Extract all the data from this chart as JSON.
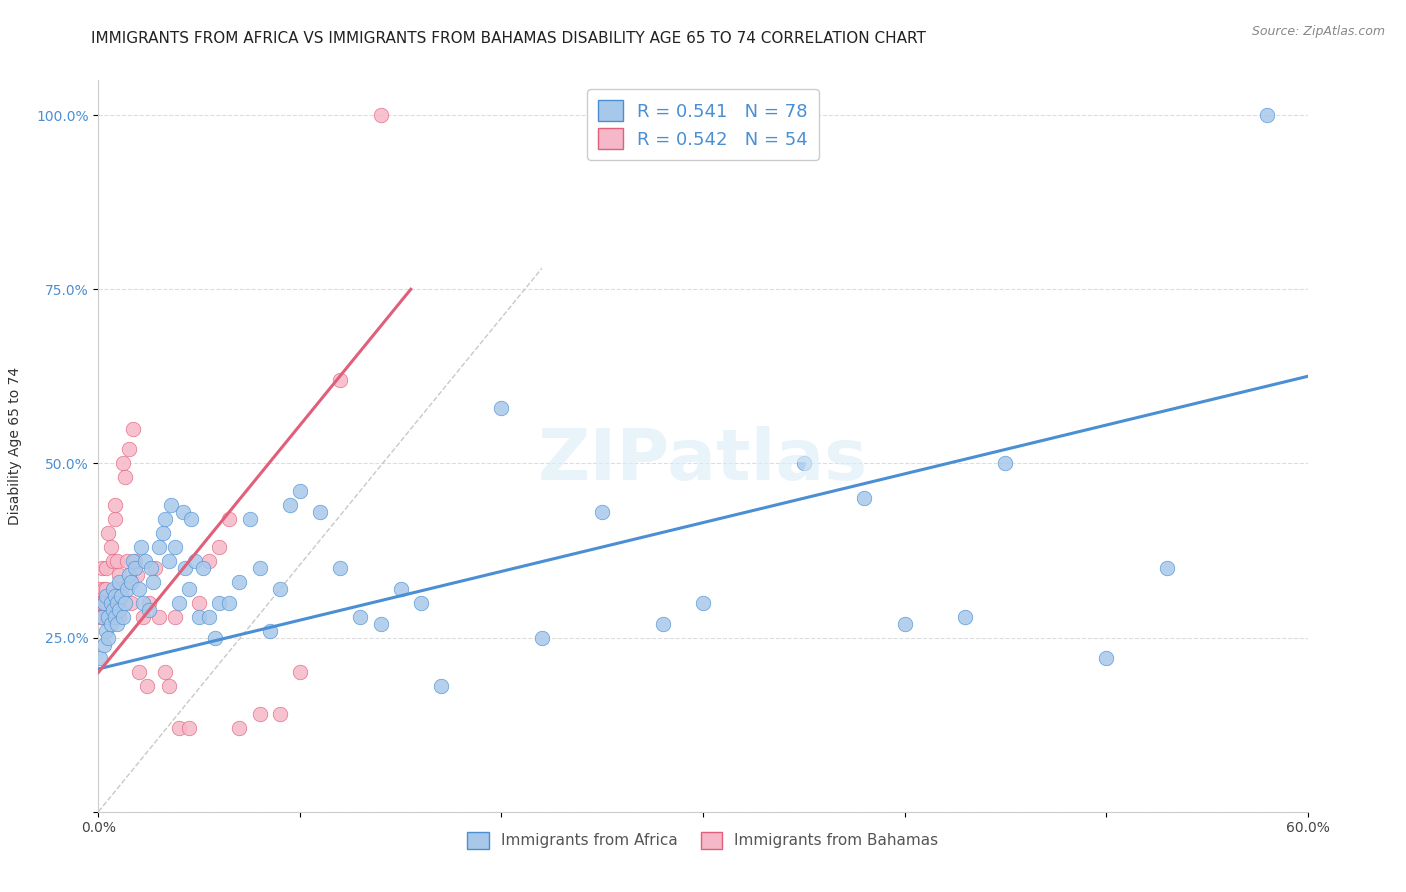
{
  "title": "IMMIGRANTS FROM AFRICA VS IMMIGRANTS FROM BAHAMAS DISABILITY AGE 65 TO 74 CORRELATION CHART",
  "source": "Source: ZipAtlas.com",
  "ylabel": "Disability Age 65 to 74",
  "xlim": [
    0.0,
    0.6
  ],
  "ylim": [
    0.0,
    1.05
  ],
  "color_africa": "#a8c8ea",
  "color_bahamas": "#f5b8c8",
  "line_color_africa": "#4a8fd4",
  "line_color_bahamas": "#e0607a",
  "legend_r_africa": "R = 0.541",
  "legend_n_africa": "N = 78",
  "legend_r_bahamas": "R = 0.542",
  "legend_n_bahamas": "N = 54",
  "label_africa": "Immigrants from Africa",
  "label_bahamas": "Immigrants from Bahamas",
  "africa_line_x": [
    0.0,
    0.6
  ],
  "africa_line_y": [
    0.205,
    0.625
  ],
  "bahamas_line_x": [
    0.0,
    0.155
  ],
  "bahamas_line_y": [
    0.2,
    0.75
  ],
  "diag_line_x": [
    0.0,
    0.22
  ],
  "diag_line_y": [
    0.0,
    0.78
  ],
  "africa_x": [
    0.001,
    0.002,
    0.003,
    0.003,
    0.004,
    0.004,
    0.005,
    0.005,
    0.006,
    0.006,
    0.007,
    0.007,
    0.008,
    0.008,
    0.009,
    0.009,
    0.01,
    0.01,
    0.011,
    0.012,
    0.013,
    0.014,
    0.015,
    0.016,
    0.017,
    0.018,
    0.02,
    0.021,
    0.022,
    0.023,
    0.025,
    0.026,
    0.027,
    0.03,
    0.032,
    0.033,
    0.035,
    0.036,
    0.038,
    0.04,
    0.042,
    0.043,
    0.045,
    0.046,
    0.048,
    0.05,
    0.052,
    0.055,
    0.058,
    0.06,
    0.065,
    0.07,
    0.075,
    0.08,
    0.085,
    0.09,
    0.095,
    0.1,
    0.11,
    0.12,
    0.13,
    0.14,
    0.15,
    0.16,
    0.17,
    0.2,
    0.22,
    0.25,
    0.28,
    0.3,
    0.35,
    0.38,
    0.4,
    0.43,
    0.45,
    0.5,
    0.53,
    0.58
  ],
  "africa_y": [
    0.22,
    0.28,
    0.24,
    0.3,
    0.26,
    0.31,
    0.28,
    0.25,
    0.27,
    0.3,
    0.29,
    0.32,
    0.28,
    0.31,
    0.3,
    0.27,
    0.33,
    0.29,
    0.31,
    0.28,
    0.3,
    0.32,
    0.34,
    0.33,
    0.36,
    0.35,
    0.32,
    0.38,
    0.3,
    0.36,
    0.29,
    0.35,
    0.33,
    0.38,
    0.4,
    0.42,
    0.36,
    0.44,
    0.38,
    0.3,
    0.43,
    0.35,
    0.32,
    0.42,
    0.36,
    0.28,
    0.35,
    0.28,
    0.25,
    0.3,
    0.3,
    0.33,
    0.42,
    0.35,
    0.26,
    0.32,
    0.44,
    0.46,
    0.43,
    0.35,
    0.28,
    0.27,
    0.32,
    0.3,
    0.18,
    0.58,
    0.25,
    0.43,
    0.27,
    0.3,
    0.5,
    0.45,
    0.27,
    0.28,
    0.5,
    0.22,
    0.35,
    1.0
  ],
  "bahamas_x": [
    0.001,
    0.001,
    0.001,
    0.002,
    0.002,
    0.002,
    0.003,
    0.003,
    0.003,
    0.004,
    0.004,
    0.004,
    0.005,
    0.005,
    0.006,
    0.006,
    0.007,
    0.007,
    0.008,
    0.008,
    0.009,
    0.009,
    0.01,
    0.01,
    0.011,
    0.012,
    0.013,
    0.014,
    0.015,
    0.016,
    0.017,
    0.018,
    0.019,
    0.02,
    0.022,
    0.024,
    0.025,
    0.028,
    0.03,
    0.033,
    0.035,
    0.038,
    0.04,
    0.045,
    0.05,
    0.055,
    0.06,
    0.065,
    0.07,
    0.08,
    0.09,
    0.1,
    0.12,
    0.14
  ],
  "bahamas_y": [
    0.28,
    0.3,
    0.32,
    0.3,
    0.28,
    0.35,
    0.32,
    0.3,
    0.28,
    0.32,
    0.3,
    0.35,
    0.28,
    0.4,
    0.38,
    0.3,
    0.36,
    0.28,
    0.42,
    0.44,
    0.3,
    0.36,
    0.34,
    0.28,
    0.32,
    0.5,
    0.48,
    0.36,
    0.52,
    0.3,
    0.55,
    0.36,
    0.34,
    0.2,
    0.28,
    0.18,
    0.3,
    0.35,
    0.28,
    0.2,
    0.18,
    0.28,
    0.12,
    0.12,
    0.3,
    0.36,
    0.38,
    0.42,
    0.12,
    0.14,
    0.14,
    0.2,
    0.62,
    1.0
  ],
  "background_color": "#ffffff",
  "grid_color": "#dddddd",
  "title_fontsize": 11,
  "axis_label_fontsize": 10,
  "tick_fontsize": 10,
  "legend_fontsize": 13
}
